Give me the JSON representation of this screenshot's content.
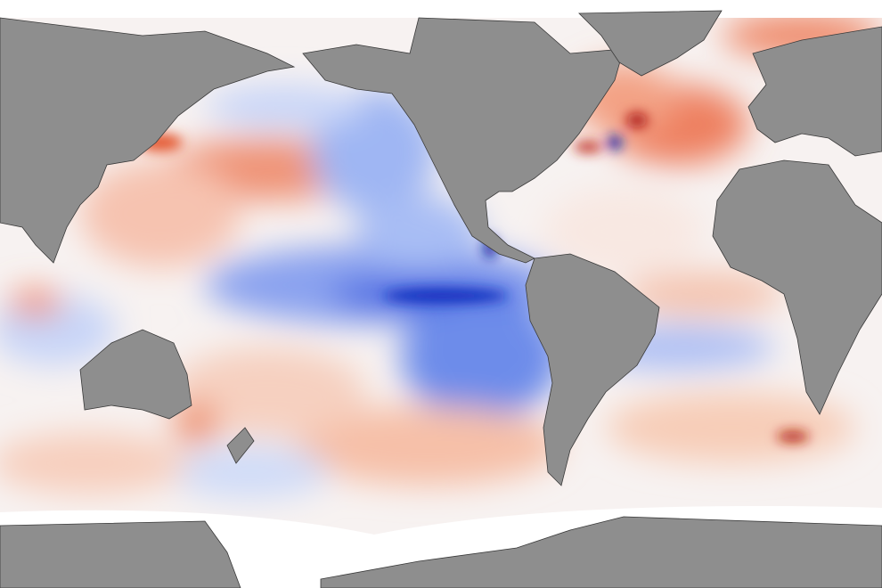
{
  "map": {
    "colors": {
      "land": "#8e8e8e",
      "coastline": "#3a3a3a",
      "ice": "#ffffff",
      "ocean_neutral": "#f7f2f1",
      "warm_anomaly": "#e4572e",
      "strong_warm_anomaly": "#a81010",
      "cold_anomaly": "#3a5fe0",
      "strong_cold_anomaly": "#0a1fa0"
    }
  }
}
